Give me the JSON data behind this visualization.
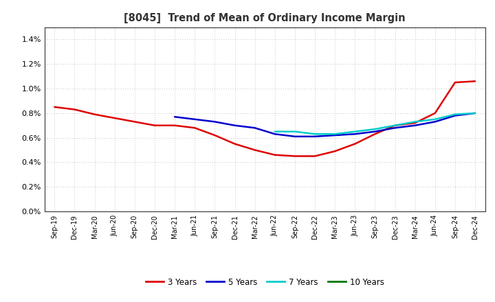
{
  "title": "[8045]  Trend of Mean of Ordinary Income Margin",
  "ylim": [
    0.0,
    0.015
  ],
  "yticks": [
    0.0,
    0.002,
    0.004,
    0.006,
    0.008,
    0.01,
    0.012,
    0.014
  ],
  "x_labels": [
    "Sep-19",
    "Dec-19",
    "Mar-20",
    "Jun-20",
    "Sep-20",
    "Dec-20",
    "Mar-21",
    "Jun-21",
    "Sep-21",
    "Dec-21",
    "Mar-22",
    "Jun-22",
    "Sep-22",
    "Dec-22",
    "Mar-23",
    "Jun-23",
    "Sep-23",
    "Dec-23",
    "Mar-24",
    "Jun-24",
    "Sep-24",
    "Dec-24"
  ],
  "series": {
    "3 Years": {
      "color": "#dd0000",
      "linewidth": 1.8,
      "values": [
        0.0085,
        0.0083,
        0.0079,
        0.0076,
        0.0073,
        0.007,
        0.007,
        0.0068,
        0.0062,
        0.0055,
        0.005,
        0.0046,
        0.0045,
        0.0045,
        0.0049,
        0.0055,
        0.0063,
        0.007,
        0.0072,
        0.008,
        0.0105,
        0.0106
      ]
    },
    "5 Years": {
      "color": "#0000cc",
      "linewidth": 1.8,
      "values": [
        null,
        null,
        null,
        null,
        null,
        null,
        0.0077,
        0.0075,
        0.0073,
        0.007,
        0.0068,
        0.0063,
        0.0061,
        0.0061,
        0.0062,
        0.0063,
        0.0065,
        0.0068,
        0.007,
        0.0073,
        0.0078,
        0.008
      ]
    },
    "7 Years": {
      "color": "#00cccc",
      "linewidth": 1.8,
      "values": [
        null,
        null,
        null,
        null,
        null,
        null,
        null,
        null,
        null,
        null,
        null,
        0.0065,
        0.0065,
        0.0063,
        0.0063,
        0.0065,
        0.0067,
        0.007,
        0.0073,
        0.0075,
        0.0079,
        0.008
      ]
    },
    "10 Years": {
      "color": "#007700",
      "linewidth": 1.8,
      "values": [
        null,
        null,
        null,
        null,
        null,
        null,
        null,
        null,
        null,
        null,
        null,
        null,
        null,
        null,
        null,
        null,
        null,
        null,
        null,
        null,
        null,
        null
      ]
    }
  },
  "legend_labels": [
    "3 Years",
    "5 Years",
    "7 Years",
    "10 Years"
  ],
  "legend_colors": [
    "#dd0000",
    "#0000cc",
    "#00cccc",
    "#007700"
  ],
  "background_color": "#ffffff"
}
